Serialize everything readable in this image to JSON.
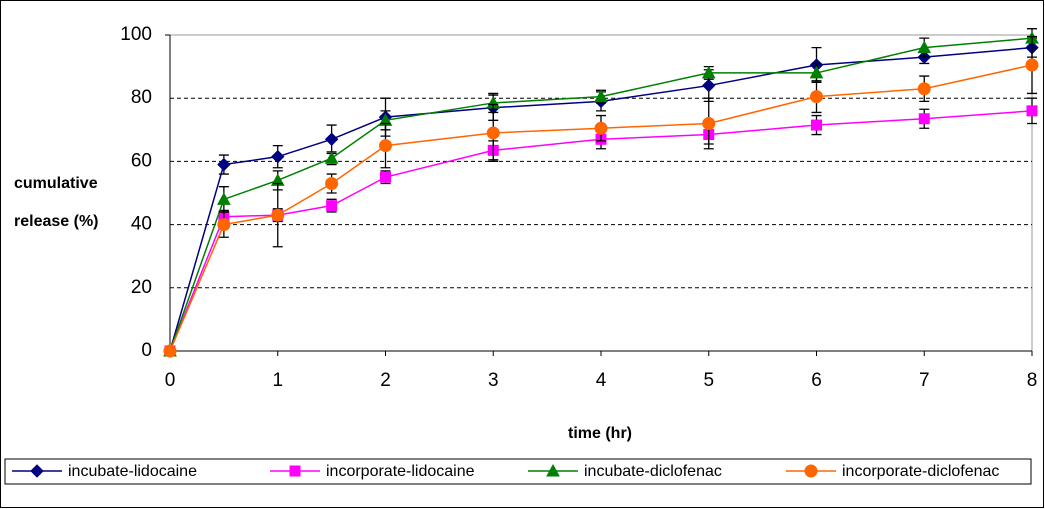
{
  "chart_data": {
    "type": "line",
    "x_label": "time (hr)",
    "y_label": "cumulative release (%)",
    "x": [
      0,
      0.5,
      1,
      1.5,
      2,
      3,
      4,
      5,
      6,
      7,
      8
    ],
    "xlim": [
      0,
      8
    ],
    "xticks": [
      0,
      1,
      2,
      3,
      4,
      5,
      6,
      7,
      8
    ],
    "ylim": [
      0,
      100
    ],
    "yticks": [
      0,
      20,
      40,
      60,
      80,
      100
    ],
    "grid": true,
    "legend": "bottom",
    "series": [
      {
        "name": "incubate-lidocaine",
        "color": "#000080",
        "marker": "diamond",
        "values": [
          0,
          59,
          61.5,
          67,
          74,
          77,
          79,
          84,
          90.5,
          93,
          96
        ],
        "errors": [
          0,
          3,
          3.5,
          4.5,
          6,
          4,
          3,
          5,
          5.5,
          2,
          3
        ]
      },
      {
        "name": "incorporate-lidocaine",
        "color": "#ff00ff",
        "marker": "square",
        "values": [
          0,
          42.5,
          43,
          46,
          55,
          63.5,
          67,
          68.5,
          71.5,
          73.5,
          76
        ],
        "errors": [
          0,
          2,
          2,
          2,
          2,
          3,
          3,
          3,
          3,
          3,
          4
        ]
      },
      {
        "name": "incubate-diclofenac",
        "color": "#008000",
        "marker": "triangle",
        "values": [
          0,
          48,
          54,
          61,
          73,
          78.5,
          80.5,
          88,
          88,
          96,
          99
        ],
        "errors": [
          0,
          4,
          3,
          2,
          3,
          3,
          2,
          2,
          3,
          3,
          3
        ]
      },
      {
        "name": "incorporate-diclofenac",
        "color": "#ff6600",
        "marker": "circle",
        "values": [
          0,
          40,
          43,
          53,
          65,
          69,
          70.5,
          72,
          80.5,
          83,
          90.5
        ],
        "errors": [
          0,
          4,
          10,
          3,
          7,
          9,
          4,
          8,
          5,
          4,
          9
        ]
      }
    ]
  }
}
